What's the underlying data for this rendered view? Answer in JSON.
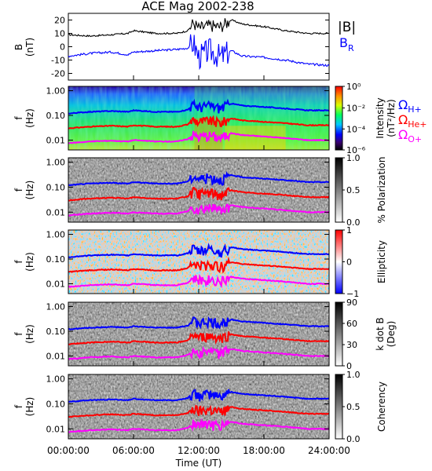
{
  "title": "ACE Mag 2002-238",
  "time_ticks": [
    "00:00:00",
    "06:00:00",
    "12:00:00",
    "18:00:00",
    "24:00:00"
  ],
  "xlabel": "Time (UT)",
  "colors": {
    "bmag": "#000000",
    "br": "#0000ff",
    "h_plus": "#0000ff",
    "he_plus": "#ff0000",
    "o_plus": "#ff00ff"
  },
  "legend": {
    "bmag": "|B|",
    "br": "B",
    "br_sub": "R",
    "h": "Ω",
    "h_sub": "H+",
    "he": "Ω",
    "he_sub": "He+",
    "o": "Ω",
    "o_sub": "O+"
  },
  "panels": {
    "b": {
      "ylabel_top": "B",
      "ylabel_bottom": "(nT)",
      "yticks": [
        "20",
        "10",
        "0",
        "-10",
        "-20"
      ]
    },
    "freq_ticks": [
      "1.00",
      "0.10",
      "0.01"
    ],
    "freq_ylabel_top": "f",
    "freq_ylabel_bottom": "(Hz)",
    "intensity": {
      "colorbar_ticks": [
        "10⁰",
        "10⁻²",
        "10⁻⁴",
        "10⁻⁶"
      ],
      "colorbar_label_1": "Intensity",
      "colorbar_label_2": "(nT²/Hz)"
    },
    "polarization": {
      "colorbar_ticks": [
        "1.0",
        "0.5",
        "0.0"
      ],
      "colorbar_label": "% Polarization"
    },
    "ellipticity": {
      "colorbar_ticks": [
        "1",
        "0",
        "−1"
      ],
      "colorbar_label": "Ellipticity"
    },
    "kdotb": {
      "colorbar_ticks": [
        "90",
        "60",
        "30",
        "0"
      ],
      "colorbar_label_1": "k dot B",
      "colorbar_label_2": "(Deg)"
    },
    "coherency": {
      "colorbar_ticks": [
        "1.0",
        "0.5",
        "0.0"
      ],
      "colorbar_label": "Coherency"
    }
  },
  "chart_data": {
    "type": "line",
    "title": "ACE Mag 2002-238",
    "xlabel": "Time (UT)",
    "x_hours": [
      0,
      2,
      4,
      5.5,
      6,
      8,
      10,
      11,
      11.5,
      12,
      13,
      14,
      15,
      16,
      18,
      20,
      22,
      24
    ],
    "series": [
      {
        "name": "|B|",
        "panel": "B",
        "values": [
          9,
          8,
          9,
          10,
          12,
          10,
          10,
          12,
          18,
          14,
          16,
          15,
          20,
          17,
          15,
          12,
          10,
          10
        ]
      },
      {
        "name": "B_R",
        "panel": "B",
        "values": [
          -7,
          -5,
          -4,
          -6,
          -4,
          -3,
          -2,
          -1,
          3,
          -8,
          -3,
          -8,
          -3,
          -7,
          -8,
          -10,
          -13,
          -14
        ]
      },
      {
        "name": "Ω_H+",
        "panel": "f",
        "values": [
          0.12,
          0.14,
          0.15,
          0.14,
          0.16,
          0.14,
          0.14,
          0.17,
          0.27,
          0.22,
          0.25,
          0.2,
          0.3,
          0.25,
          0.22,
          0.19,
          0.16,
          0.16
        ]
      },
      {
        "name": "Ω_He+",
        "panel": "f",
        "values": [
          0.03,
          0.035,
          0.038,
          0.035,
          0.04,
          0.035,
          0.035,
          0.043,
          0.068,
          0.055,
          0.063,
          0.05,
          0.075,
          0.063,
          0.055,
          0.048,
          0.04,
          0.04
        ]
      },
      {
        "name": "Ω_O+",
        "panel": "f",
        "values": [
          0.0075,
          0.0088,
          0.0095,
          0.0088,
          0.01,
          0.0088,
          0.0088,
          0.011,
          0.017,
          0.014,
          0.016,
          0.0125,
          0.019,
          0.016,
          0.014,
          0.012,
          0.01,
          0.01
        ]
      }
    ],
    "xlim_hours": [
      0,
      24
    ],
    "b_ylim": [
      -25,
      25
    ],
    "f_ylim_log": [
      0.004,
      1.5
    ]
  }
}
